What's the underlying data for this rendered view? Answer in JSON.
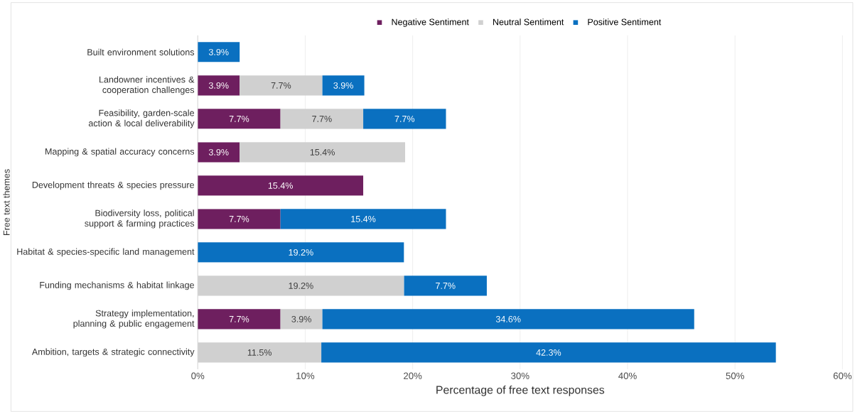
{
  "chart_data": {
    "type": "bar",
    "orientation": "horizontal",
    "stacked": true,
    "xlabel": "Percentage of free text responses",
    "ylabel": "Free text themes",
    "categories": [
      "Built environment solutions",
      "Landowner incentives & cooperation challenges",
      "Feasibility, garden-scale action & local deliverability",
      "Mapping & spatial accuracy concerns",
      "Development threats & species pressure",
      "Biodiversity loss, political support & farming practices",
      "Habitat & species-specific land management",
      "Funding mechanisms & habitat linkage",
      "Strategy implementation, planning & public engagement",
      "Ambition, targets & strategic connectivity"
    ],
    "series": [
      {
        "name": "Negative Sentiment",
        "color": "#6e1f5f",
        "values": [
          null,
          3.9,
          7.7,
          3.9,
          15.4,
          7.7,
          null,
          null,
          7.7,
          null
        ],
        "value_labels": [
          null,
          "3.9%",
          "7.7%",
          "3.9%",
          "15.4%",
          "7.7%",
          null,
          null,
          "7.7%",
          null
        ]
      },
      {
        "name": "Neutral Sentiment",
        "color": "#d0d0d0",
        "values": [
          null,
          7.7,
          7.7,
          15.4,
          null,
          null,
          null,
          19.2,
          3.9,
          11.5
        ],
        "value_labels": [
          null,
          "7.7%",
          "7.7%",
          "15.4%",
          null,
          null,
          null,
          "19.2%",
          "3.9%",
          "11.5%"
        ]
      },
      {
        "name": "Positive Sentiment",
        "color": "#0a70c0",
        "values": [
          3.9,
          3.9,
          7.7,
          null,
          null,
          15.4,
          19.2,
          7.7,
          34.6,
          42.3
        ],
        "value_labels": [
          "3.9%",
          "3.9%",
          "7.7%",
          null,
          null,
          "15.4%",
          "19.2%",
          "7.7%",
          "34.6%",
          "42.3%"
        ]
      }
    ],
    "xlim": [
      0,
      60
    ],
    "xticks": [
      {
        "value": 0,
        "label": "0%"
      },
      {
        "value": 10,
        "label": "10%"
      },
      {
        "value": 20,
        "label": "20%"
      },
      {
        "value": 30,
        "label": "30%"
      },
      {
        "value": 40,
        "label": "40%"
      },
      {
        "value": 50,
        "label": "50%"
      },
      {
        "value": 60,
        "label": "60%"
      }
    ],
    "grid": "x",
    "legend": "top"
  }
}
